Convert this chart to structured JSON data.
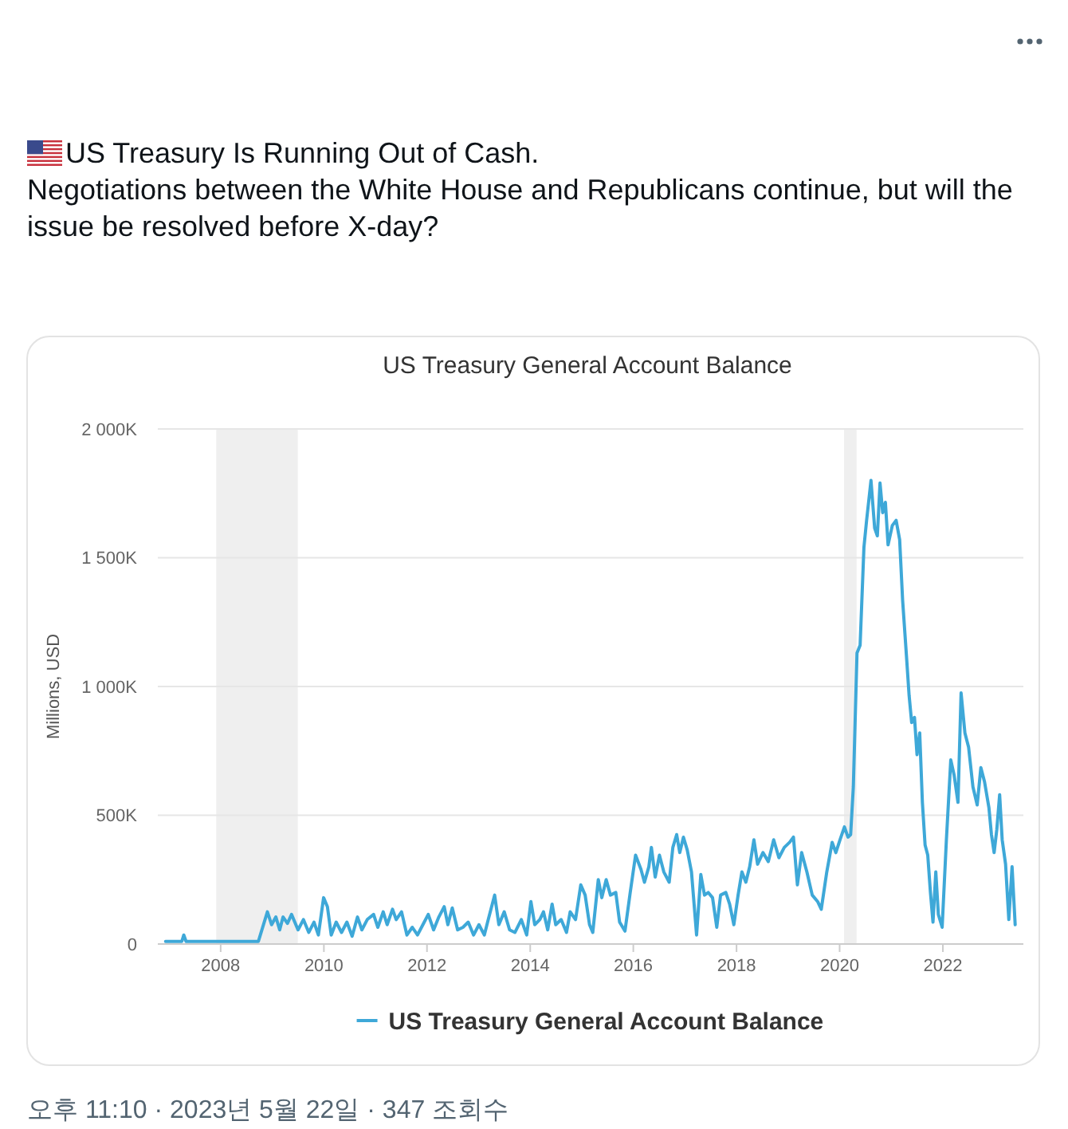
{
  "chart_data": {
    "type": "line",
    "title": "US Treasury General Account Balance",
    "ylabel": "Millions, USD",
    "x": [
      "2006-12-07",
      "2007-04-01",
      "2007-04-15",
      "2007-05-01",
      "2008-09-24",
      "2008-10-05",
      "2008-11-27",
      "2008-12-27",
      "2009-01-26",
      "2009-02-22",
      "2009-03-18",
      "2009-04-18",
      "2009-05-17",
      "2009-07-02",
      "2009-08-09",
      "2009-09-16",
      "2009-10-23",
      "2009-11-23",
      "2009-12-30",
      "2010-01-26",
      "2010-02-22",
      "2010-03-29",
      "2010-05-06",
      "2010-06-13",
      "2010-07-20",
      "2010-08-27",
      "2010-09-27",
      "2010-11-04",
      "2010-12-19",
      "2011-01-18",
      "2011-02-25",
      "2011-03-25",
      "2011-05-02",
      "2011-05-28",
      "2011-07-05",
      "2011-08-12",
      "2011-09-19",
      "2011-10-26",
      "2011-12-03",
      "2012-01-10",
      "2012-02-17",
      "2012-03-25",
      "2012-05-02",
      "2012-05-28",
      "2012-06-28",
      "2012-08-05",
      "2012-09-12",
      "2012-10-19",
      "2012-11-26",
      "2013-01-03",
      "2013-02-10",
      "2013-03-10",
      "2013-04-24",
      "2013-05-24",
      "2013-07-01",
      "2013-08-08",
      "2013-09-15",
      "2013-10-30",
      "2013-12-07",
      "2014-01-06",
      "2014-02-02",
      "2014-03-10",
      "2014-04-05",
      "2014-05-05",
      "2014-06-05",
      "2014-07-01",
      "2014-08-08",
      "2014-09-15",
      "2014-10-11",
      "2014-11-18",
      "2014-12-25",
      "2015-01-25",
      "2015-02-25",
      "2015-03-20",
      "2015-04-28",
      "2015-05-23",
      "2015-06-23",
      "2015-07-23",
      "2015-08-30",
      "2015-09-26",
      "2015-11-03",
      "2015-12-10",
      "2016-01-17",
      "2016-02-24",
      "2016-03-20",
      "2016-04-20",
      "2016-05-08",
      "2016-06-04",
      "2016-07-04",
      "2016-08-04",
      "2016-09-11",
      "2016-10-07",
      "2016-11-03",
      "2016-11-25",
      "2016-12-21",
      "2017-01-17",
      "2017-02-16",
      "2017-03-24",
      "2017-04-23",
      "2017-05-19",
      "2017-06-15",
      "2017-07-15",
      "2017-08-14",
      "2017-09-10",
      "2017-10-17",
      "2017-11-13",
      "2017-12-13",
      "2018-01-12",
      "2018-02-08",
      "2018-03-08",
      "2018-04-04",
      "2018-05-04",
      "2018-05-30",
      "2018-07-07",
      "2018-08-14",
      "2018-09-21",
      "2018-10-28",
      "2018-12-05",
      "2019-01-12",
      "2019-02-08",
      "2019-03-08",
      "2019-04-07",
      "2019-05-14",
      "2019-06-21",
      "2019-07-29",
      "2019-08-24",
      "2019-10-02",
      "2019-11-09",
      "2019-12-05",
      "2020-01-04",
      "2020-02-04",
      "2020-02-29",
      "2020-03-19",
      "2020-04-07",
      "2020-05-03",
      "2020-05-25",
      "2020-06-21",
      "2020-07-10",
      "2020-08-10",
      "2020-09-05",
      "2020-09-24",
      "2020-10-13",
      "2020-11-01",
      "2020-11-20",
      "2020-12-09",
      "2021-01-08",
      "2021-02-04",
      "2021-03-01",
      "2021-03-22",
      "2021-04-18",
      "2021-05-07",
      "2021-05-25",
      "2021-06-14",
      "2021-07-02",
      "2021-07-21",
      "2021-08-09",
      "2021-08-28",
      "2021-09-16",
      "2021-10-05",
      "2021-10-23",
      "2021-11-12",
      "2021-11-30",
      "2021-12-27",
      "2022-01-26",
      "2022-02-26",
      "2022-03-22",
      "2022-04-18",
      "2022-05-10",
      "2022-06-06",
      "2022-07-02",
      "2022-08-02",
      "2022-09-01",
      "2022-09-27",
      "2022-10-23",
      "2022-11-23",
      "2022-12-11",
      "2022-12-30",
      "2023-01-18",
      "2023-02-07",
      "2023-02-25",
      "2023-03-21",
      "2023-04-13",
      "2023-05-06",
      "2023-05-28"
    ],
    "series": [
      {
        "name": "US Treasury General Account Balance",
        "color": "#3ea8d8",
        "values": [
          10000,
          10000,
          35000,
          10000,
          10000,
          30000,
          125000,
          75000,
          105000,
          55000,
          105000,
          80000,
          115000,
          55000,
          95000,
          45000,
          85000,
          35000,
          180000,
          145000,
          35000,
          85000,
          45000,
          85000,
          30000,
          105000,
          55000,
          95000,
          115000,
          65000,
          125000,
          75000,
          135000,
          95000,
          125000,
          35000,
          65000,
          35000,
          75000,
          115000,
          55000,
          105000,
          145000,
          75000,
          140000,
          55000,
          65000,
          85000,
          35000,
          75000,
          35000,
          95000,
          190000,
          75000,
          125000,
          55000,
          45000,
          95000,
          35000,
          165000,
          75000,
          95000,
          125000,
          55000,
          155000,
          75000,
          95000,
          45000,
          125000,
          95000,
          230000,
          190000,
          75000,
          45000,
          250000,
          180000,
          250000,
          190000,
          200000,
          85000,
          50000,
          200000,
          345000,
          290000,
          240000,
          300000,
          375000,
          260000,
          345000,
          280000,
          240000,
          375000,
          425000,
          355000,
          415000,
          365000,
          280000,
          35000,
          270000,
          190000,
          200000,
          180000,
          65000,
          190000,
          200000,
          155000,
          75000,
          190000,
          280000,
          240000,
          300000,
          405000,
          310000,
          355000,
          320000,
          405000,
          335000,
          375000,
          395000,
          415000,
          230000,
          355000,
          280000,
          190000,
          165000,
          135000,
          280000,
          395000,
          355000,
          405000,
          455000,
          415000,
          425000,
          610000,
          1130000,
          1160000,
          1540000,
          1645000,
          1800000,
          1615000,
          1585000,
          1790000,
          1675000,
          1715000,
          1550000,
          1625000,
          1645000,
          1570000,
          1335000,
          1120000,
          965000,
          860000,
          880000,
          735000,
          820000,
          550000,
          385000,
          345000,
          200000,
          85000,
          280000,
          115000,
          65000,
          405000,
          715000,
          655000,
          550000,
          975000,
          820000,
          765000,
          610000,
          540000,
          685000,
          630000,
          530000,
          425000,
          355000,
          445000,
          580000,
          405000,
          310000,
          95000,
          300000,
          75000
        ]
      }
    ],
    "xlim": [
      "2006-10-13",
      "2023-07-25"
    ],
    "ylim": [
      0,
      2000000
    ],
    "xticks": [
      "2008",
      "2010",
      "2012",
      "2014",
      "2016",
      "2018",
      "2020",
      "2022"
    ],
    "yticks": [
      0,
      {
        "value": 500000,
        "label": "500K"
      },
      {
        "value": 1000000,
        "label": "1 000K"
      },
      {
        "value": 1500000,
        "label": "1 500K"
      },
      {
        "value": 2000000,
        "label": "2 000K"
      }
    ],
    "grid": "y",
    "legend": "bottom",
    "bands": [
      {
        "axis": "x",
        "from": "2007-12-01",
        "to": "2009-06-30",
        "color": "#efefef"
      },
      {
        "axis": "x",
        "from": "2020-02-01",
        "to": "2020-04-30",
        "color": "#efefef"
      }
    ],
    "annotations": [
      "US Treasury Is Running Out of Cash.",
      "Negotiations between the White House and Republicans continue, but will the issue be resolved before X-day?",
      "오후 11:10 · 2023년 5월 22일 · 347 조회수"
    ]
  }
}
